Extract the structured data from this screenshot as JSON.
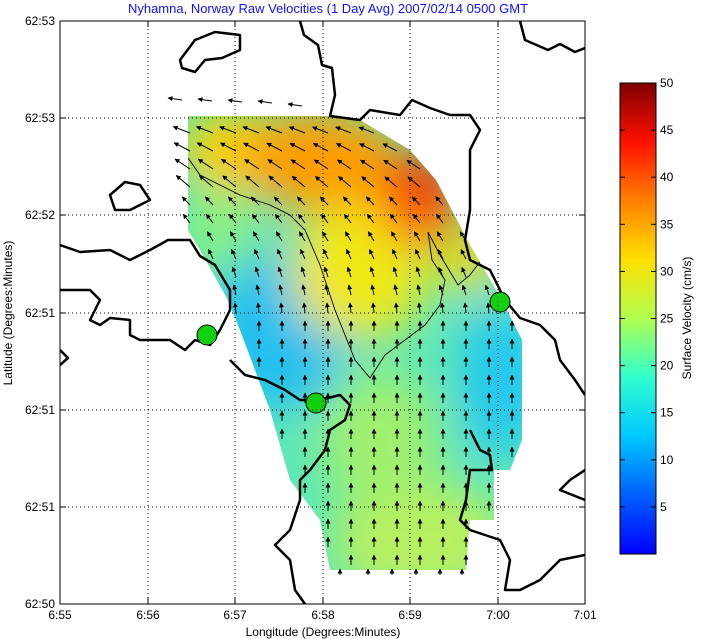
{
  "chart_data": {
    "type": "heatmap",
    "title": "Nyhamna, Norway Raw Velocities (1 Day Avg) 2007/02/14 0500 GMT",
    "xlabel": "Longitude (Degrees:Minutes)",
    "ylabel": "Latitude (Degrees:Minutes)",
    "x_ticks": [
      "6:55",
      "6:56",
      "6:57",
      "6:58",
      "6:59",
      "7:00",
      "7:01"
    ],
    "y_ticks": [
      "62:53",
      "62:53",
      "62:52",
      "62:51",
      "62:51",
      "62:51",
      "62:50"
    ],
    "xlim_minutes": [
      55,
      61
    ],
    "colorbar": {
      "label": "Surface Velocity (cm/s)",
      "ticks": [
        5,
        10,
        15,
        20,
        25,
        30,
        35,
        40,
        45,
        50
      ],
      "range": [
        0,
        50
      ],
      "colormap": "jet"
    },
    "grid": "dotted",
    "contour_level": 28,
    "speed_field_samples": [
      {
        "lon": "6:56.5",
        "lat_idx": 0.0,
        "speed": 28
      },
      {
        "lon": "6:57.5",
        "lat_idx": 0.0,
        "speed": 36
      },
      {
        "lon": "6:58.5",
        "lat_idx": 0.3,
        "speed": 40
      },
      {
        "lon": "6:59.0",
        "lat_idx": 0.6,
        "speed": 46
      },
      {
        "lon": "6:57.0",
        "lat_idx": 1.2,
        "speed": 20
      },
      {
        "lon": "6:58.0",
        "lat_idx": 1.2,
        "speed": 32
      },
      {
        "lon": "6:59.0",
        "lat_idx": 1.5,
        "speed": 30
      },
      {
        "lon": "6:57.0",
        "lat_idx": 2.0,
        "speed": 12
      },
      {
        "lon": "6:58.5",
        "lat_idx": 2.5,
        "speed": 20
      },
      {
        "lon": "7:00.0",
        "lat_idx": 2.5,
        "speed": 12
      },
      {
        "lon": "6:58.0",
        "lat_idx": 3.5,
        "speed": 16
      },
      {
        "lon": "6:58.5",
        "lat_idx": 4.5,
        "speed": 18
      }
    ],
    "sites": [
      {
        "name": "site-1",
        "lon": "6:56.7",
        "lat_idx": 2.2
      },
      {
        "name": "site-2",
        "lon": "6:57.9",
        "lat_idx": 2.9
      },
      {
        "name": "site-3",
        "lon": "7:00.0",
        "lat_idx": 1.9
      }
    ],
    "flow_direction": "northwest in north, north in south"
  },
  "colors": {
    "title": "#1010ff",
    "land_outline": "#000000",
    "site_marker": "#10d010"
  }
}
